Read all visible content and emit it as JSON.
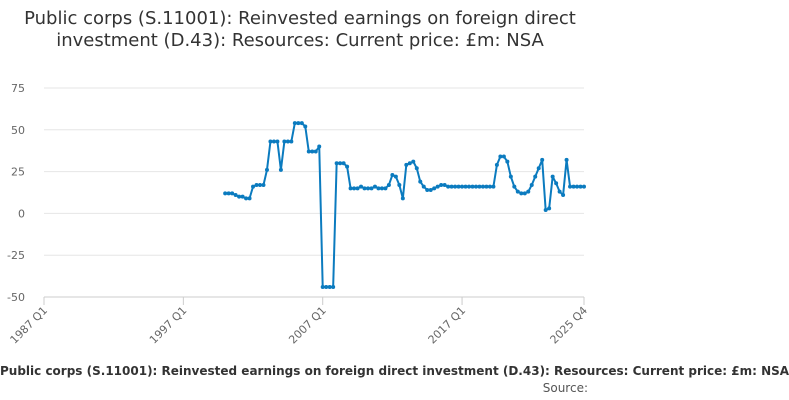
{
  "chart_data": {
    "type": "line",
    "title": "Public corps (S.11001): Reinvested earnings on foreign direct investment (D.43): Resources: Current price: £m: NSA",
    "series": [
      {
        "name": "Public corps (S.11001): Reinvested earnings on foreign direct investment (D.43): Resources: Current price: £m: NSA",
        "color": "#0b7bbf",
        "values": [
          [
            "2000 Q1",
            12
          ],
          [
            "2000 Q2",
            12
          ],
          [
            "2000 Q3",
            12
          ],
          [
            "2000 Q4",
            11
          ],
          [
            "2001 Q1",
            10
          ],
          [
            "2001 Q2",
            10
          ],
          [
            "2001 Q3",
            9
          ],
          [
            "2001 Q4",
            9
          ],
          [
            "2002 Q1",
            16
          ],
          [
            "2002 Q2",
            17
          ],
          [
            "2002 Q3",
            17
          ],
          [
            "2002 Q4",
            17
          ],
          [
            "2003 Q1",
            26
          ],
          [
            "2003 Q2",
            43
          ],
          [
            "2003 Q3",
            43
          ],
          [
            "2003 Q4",
            43
          ],
          [
            "2004 Q1",
            26
          ],
          [
            "2004 Q2",
            43
          ],
          [
            "2004 Q3",
            43
          ],
          [
            "2004 Q4",
            43
          ],
          [
            "2005 Q1",
            54
          ],
          [
            "2005 Q2",
            54
          ],
          [
            "2005 Q3",
            54
          ],
          [
            "2005 Q4",
            52
          ],
          [
            "2006 Q1",
            37
          ],
          [
            "2006 Q2",
            37
          ],
          [
            "2006 Q3",
            37
          ],
          [
            "2006 Q4",
            40
          ],
          [
            "2007 Q1",
            -44
          ],
          [
            "2007 Q2",
            -44
          ],
          [
            "2007 Q3",
            -44
          ],
          [
            "2007 Q4",
            -44
          ],
          [
            "2008 Q1",
            30
          ],
          [
            "2008 Q2",
            30
          ],
          [
            "2008 Q3",
            30
          ],
          [
            "2008 Q4",
            28
          ],
          [
            "2009 Q1",
            15
          ],
          [
            "2009 Q2",
            15
          ],
          [
            "2009 Q3",
            15
          ],
          [
            "2009 Q4",
            16
          ],
          [
            "2010 Q1",
            15
          ],
          [
            "2010 Q2",
            15
          ],
          [
            "2010 Q3",
            15
          ],
          [
            "2010 Q4",
            16
          ],
          [
            "2011 Q1",
            15
          ],
          [
            "2011 Q2",
            15
          ],
          [
            "2011 Q3",
            15
          ],
          [
            "2011 Q4",
            17
          ],
          [
            "2012 Q1",
            23
          ],
          [
            "2012 Q2",
            22
          ],
          [
            "2012 Q3",
            17
          ],
          [
            "2012 Q4",
            9
          ],
          [
            "2013 Q1",
            29
          ],
          [
            "2013 Q2",
            30
          ],
          [
            "2013 Q3",
            31
          ],
          [
            "2013 Q4",
            27
          ],
          [
            "2014 Q1",
            19
          ],
          [
            "2014 Q2",
            16
          ],
          [
            "2014 Q3",
            14
          ],
          [
            "2014 Q4",
            14
          ],
          [
            "2015 Q1",
            15
          ],
          [
            "2015 Q2",
            16
          ],
          [
            "2015 Q3",
            17
          ],
          [
            "2015 Q4",
            17
          ],
          [
            "2016 Q1",
            16
          ],
          [
            "2016 Q2",
            16
          ],
          [
            "2016 Q3",
            16
          ],
          [
            "2016 Q4",
            16
          ],
          [
            "2017 Q1",
            16
          ],
          [
            "2017 Q2",
            16
          ],
          [
            "2017 Q3",
            16
          ],
          [
            "2017 Q4",
            16
          ],
          [
            "2018 Q1",
            16
          ],
          [
            "2018 Q2",
            16
          ],
          [
            "2018 Q3",
            16
          ],
          [
            "2018 Q4",
            16
          ],
          [
            "2019 Q1",
            16
          ],
          [
            "2019 Q2",
            16
          ],
          [
            "2019 Q3",
            29
          ],
          [
            "2019 Q4",
            34
          ],
          [
            "2020 Q1",
            34
          ],
          [
            "2020 Q2",
            31
          ],
          [
            "2020 Q3",
            22
          ],
          [
            "2020 Q4",
            16
          ],
          [
            "2021 Q1",
            13
          ],
          [
            "2021 Q2",
            12
          ],
          [
            "2021 Q3",
            12
          ],
          [
            "2021 Q4",
            13
          ],
          [
            "2022 Q1",
            17
          ],
          [
            "2022 Q2",
            22
          ],
          [
            "2022 Q3",
            27
          ],
          [
            "2022 Q4",
            32
          ],
          [
            "2023 Q1",
            2
          ],
          [
            "2023 Q2",
            3
          ],
          [
            "2023 Q3",
            22
          ],
          [
            "2023 Q4",
            18
          ],
          [
            "2024 Q1",
            13
          ],
          [
            "2024 Q2",
            11
          ],
          [
            "2024 Q3",
            32
          ],
          [
            "2024 Q4",
            16
          ],
          [
            "2025 Q1",
            16
          ],
          [
            "2025 Q2",
            16
          ],
          [
            "2025 Q3",
            16
          ],
          [
            "2025 Q4",
            16
          ]
        ]
      }
    ],
    "x_ticks": [
      "1987 Q1",
      "1997 Q1",
      "2007 Q1",
      "2017 Q1",
      "2025 Q4"
    ],
    "xlim": [
      "1987 Q1",
      "2025 Q4"
    ],
    "y_ticks": [
      75,
      50,
      25,
      0,
      -25,
      -50
    ],
    "ylim": [
      -50,
      75
    ],
    "grid": "horizontal",
    "legend": "bottom",
    "source_label": "Source:"
  }
}
